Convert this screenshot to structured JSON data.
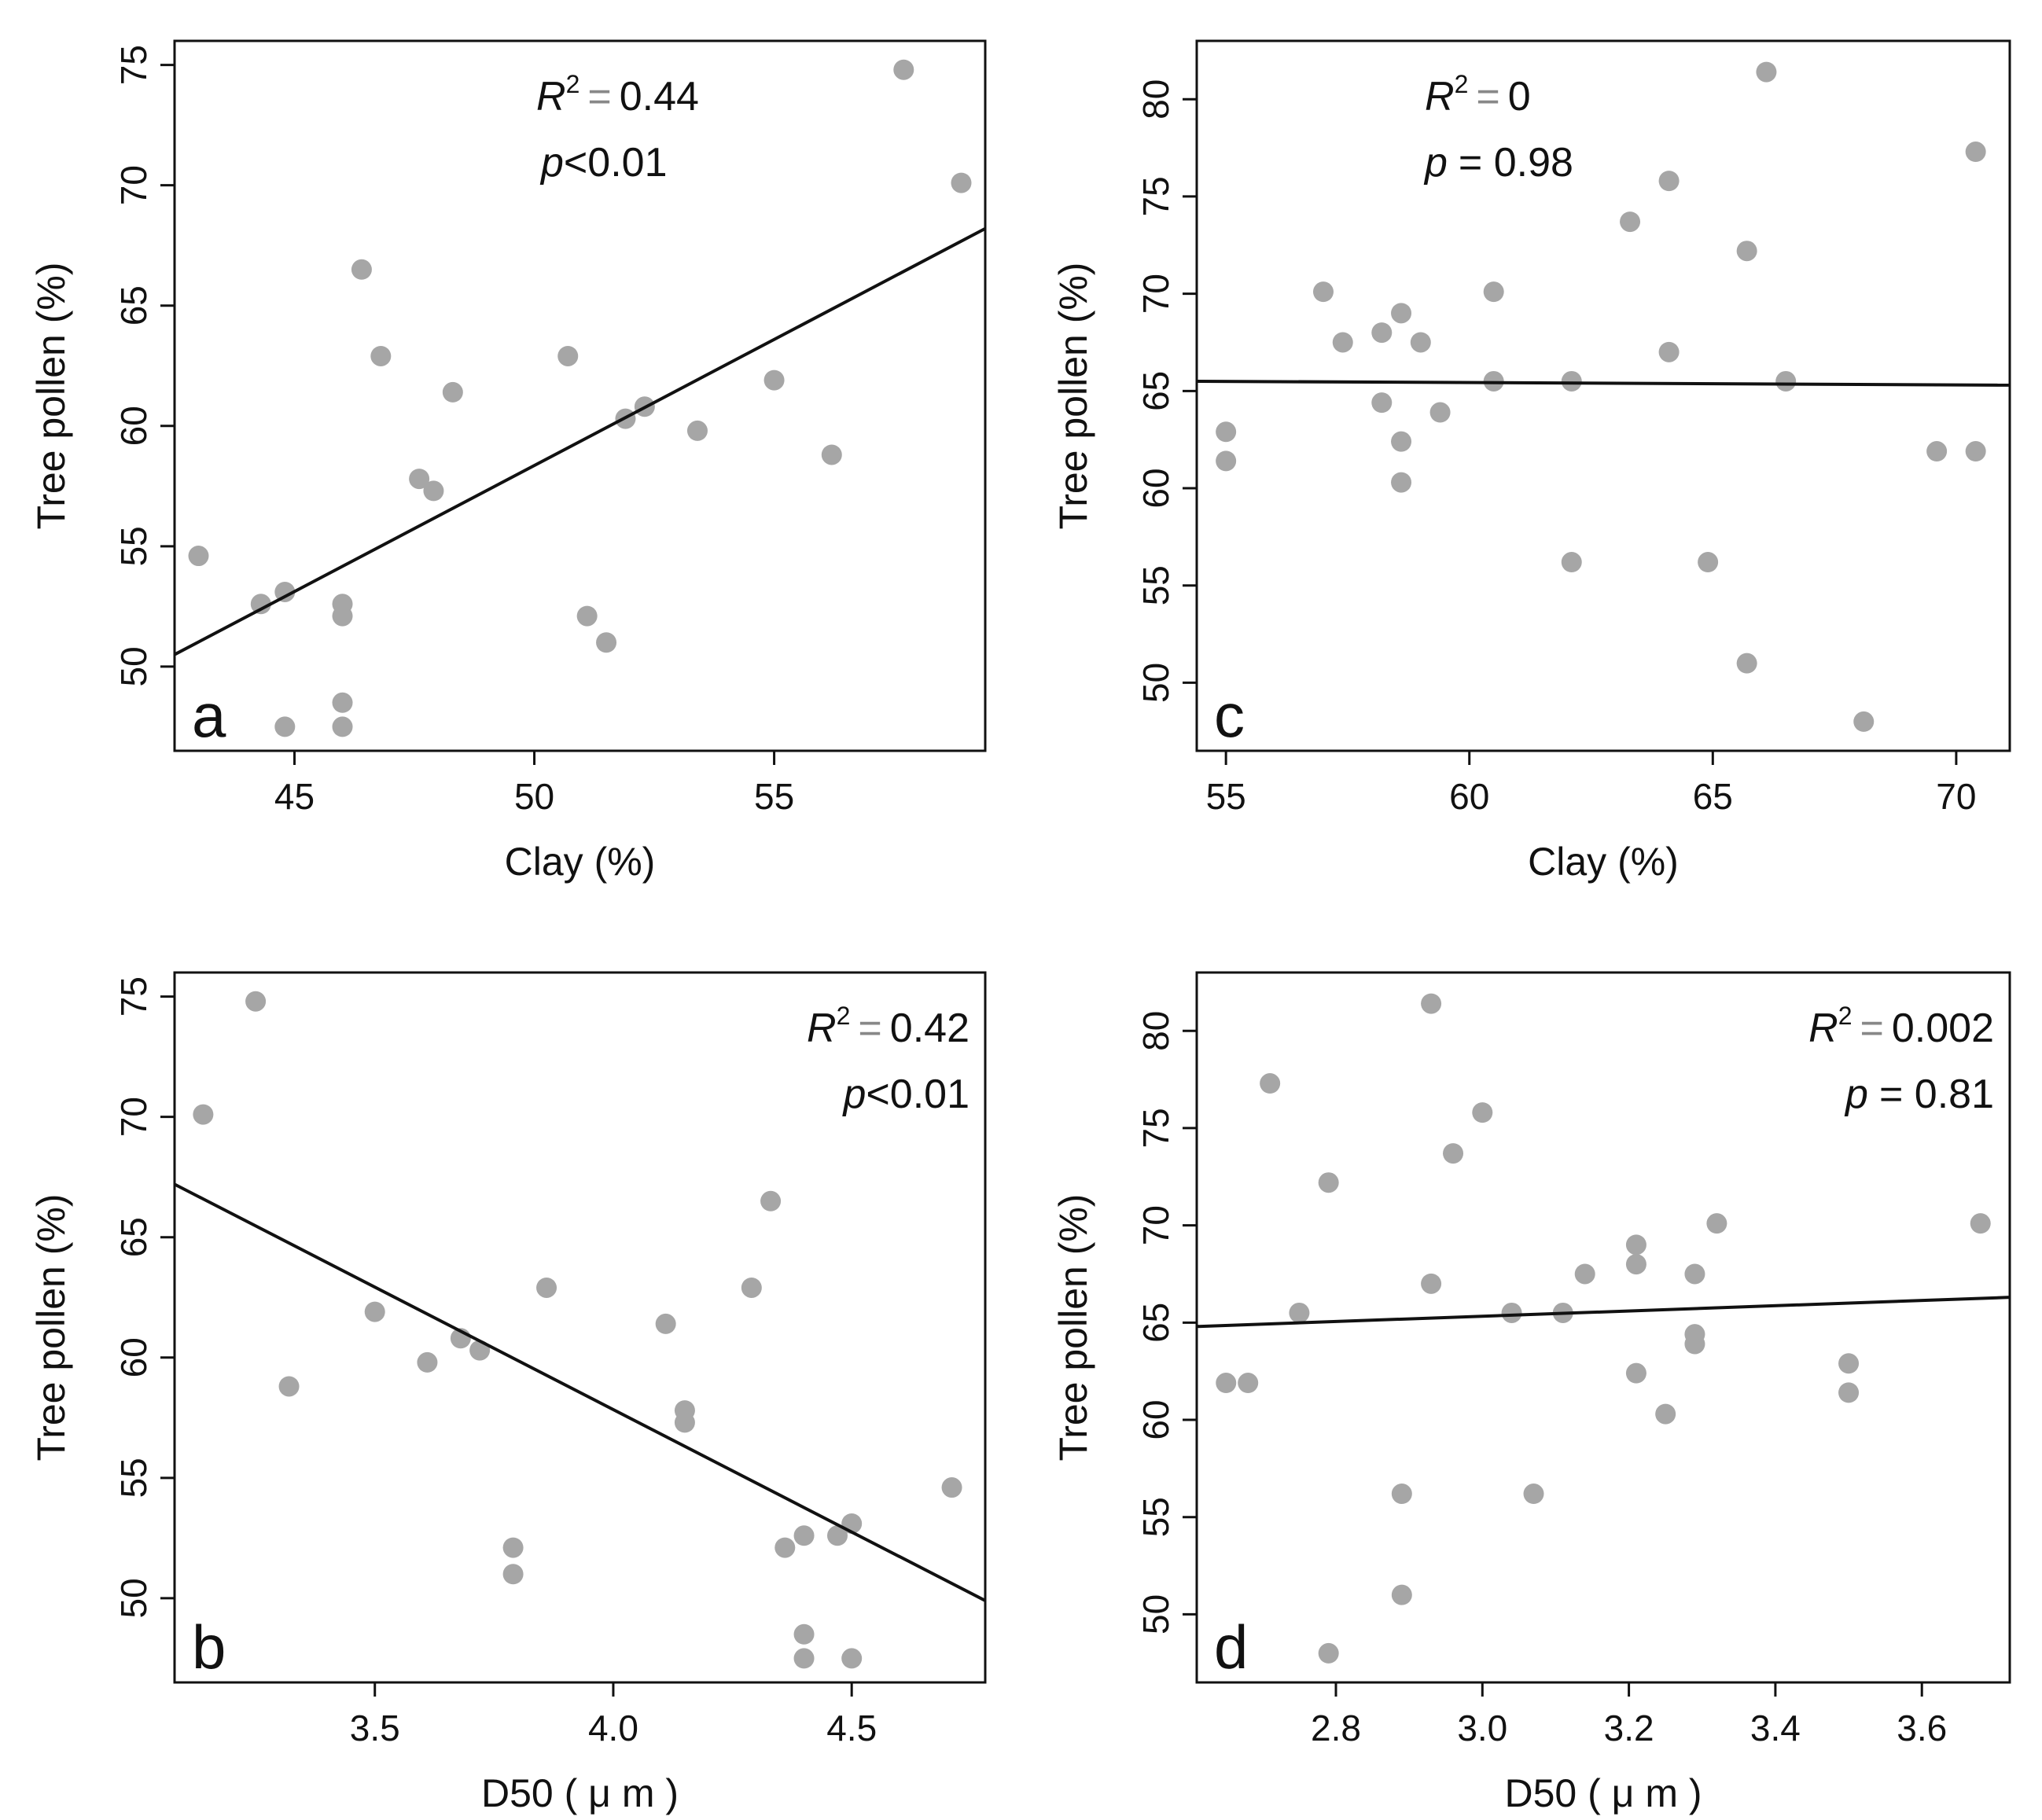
{
  "colors": {
    "point": "#a6a6a6",
    "line": "#111111",
    "axis": "#111111",
    "background": "#ffffff"
  },
  "chart_data": [
    {
      "id": "a",
      "type": "scatter",
      "panel_label": "a",
      "xlabel": "Clay (%)",
      "ylabel": "Tree pollen (%)",
      "xlim": [
        42.5,
        59.4
      ],
      "ylim": [
        46.5,
        76.0
      ],
      "xticks": [
        45,
        50,
        55
      ],
      "yticks": [
        50,
        55,
        60,
        65,
        70,
        75
      ],
      "stats": {
        "r2_label": "R",
        "r2_sup": "2",
        "eq": "=",
        "r2_value": "0.44",
        "p_label": "p",
        "p_text": "<0.01"
      },
      "stats_position": "top-center",
      "fit_line": {
        "x": [
          42.5,
          59.4
        ],
        "y": [
          50.5,
          68.2
        ]
      },
      "x": [
        43.0,
        44.3,
        44.8,
        44.8,
        46.0,
        46.0,
        46.0,
        46.0,
        46.4,
        46.8,
        47.6,
        47.9,
        48.3,
        50.7,
        51.1,
        51.5,
        51.9,
        52.3,
        53.4,
        55.0,
        56.2,
        57.7,
        58.9
      ],
      "y": [
        54.6,
        52.6,
        53.1,
        47.5,
        52.6,
        52.1,
        48.5,
        47.5,
        66.5,
        62.9,
        57.8,
        57.3,
        61.4,
        62.9,
        52.1,
        51.0,
        60.3,
        60.8,
        59.8,
        61.9,
        58.8,
        74.8,
        70.1
      ]
    },
    {
      "id": "b",
      "type": "scatter",
      "panel_label": "b",
      "xlabel": "D50 ( μ m )",
      "ylabel": "Tree pollen (%)",
      "xlim": [
        3.08,
        4.78
      ],
      "ylim": [
        46.5,
        76.0
      ],
      "xticks": [
        3.5,
        4.0,
        4.5
      ],
      "yticks": [
        50,
        55,
        60,
        65,
        70,
        75
      ],
      "stats": {
        "r2_label": "R",
        "r2_sup": "2",
        "eq": "=",
        "r2_value": "0.42",
        "p_label": "p",
        "p_text": "<0.01"
      },
      "stats_position": "top-right",
      "fit_line": {
        "x": [
          3.08,
          4.78
        ],
        "y": [
          67.2,
          49.9
        ]
      },
      "x": [
        3.14,
        3.25,
        3.32,
        3.5,
        3.61,
        3.68,
        3.72,
        3.79,
        3.79,
        3.86,
        4.11,
        4.15,
        4.15,
        4.29,
        4.33,
        4.36,
        4.4,
        4.4,
        4.4,
        4.47,
        4.5,
        4.5,
        4.71
      ],
      "y": [
        70.1,
        74.8,
        58.8,
        61.9,
        59.8,
        60.8,
        60.3,
        52.1,
        51.0,
        62.9,
        61.4,
        57.8,
        57.3,
        62.9,
        66.5,
        52.1,
        52.6,
        48.5,
        47.5,
        52.6,
        53.1,
        47.5,
        54.6
      ]
    },
    {
      "id": "c",
      "type": "scatter",
      "panel_label": "c",
      "xlabel": "Clay (%)",
      "ylabel": "Tree pollen (%)",
      "xlim": [
        54.4,
        71.1
      ],
      "ylim": [
        46.5,
        83.0
      ],
      "xticks": [
        55,
        60,
        65,
        70
      ],
      "yticks": [
        50,
        55,
        60,
        65,
        70,
        75,
        80
      ],
      "stats": {
        "r2_label": "R",
        "r2_sup": "2",
        "eq": "=",
        "r2_value": "0",
        "p_label": "p",
        "p_text": "= 0.98"
      },
      "stats_position": "top-left",
      "fit_line": {
        "x": [
          54.4,
          71.1
        ],
        "y": [
          65.5,
          65.3
        ]
      },
      "x": [
        55.0,
        55.0,
        57.0,
        57.4,
        58.2,
        58.2,
        58.6,
        58.6,
        58.6,
        59.0,
        59.4,
        60.5,
        60.5,
        62.1,
        62.1,
        63.3,
        64.1,
        64.1,
        64.9,
        65.7,
        65.7,
        66.1,
        66.5,
        68.1,
        69.6,
        70.4,
        70.4
      ],
      "y": [
        62.9,
        61.4,
        70.1,
        67.5,
        68.0,
        64.4,
        69.0,
        62.4,
        60.3,
        67.5,
        63.9,
        70.1,
        65.5,
        65.5,
        56.2,
        73.7,
        75.8,
        67.0,
        56.2,
        72.2,
        51.0,
        81.4,
        65.5,
        48.0,
        61.9,
        77.3,
        61.9
      ]
    },
    {
      "id": "d",
      "type": "scatter",
      "panel_label": "d",
      "xlabel": "D50 ( μ m )",
      "ylabel": "Tree pollen (%)",
      "xlim": [
        2.61,
        3.72
      ],
      "ylim": [
        46.5,
        83.0
      ],
      "xticks": [
        2.8,
        3.0,
        3.2,
        3.4,
        3.6
      ],
      "yticks": [
        50,
        55,
        60,
        65,
        70,
        75,
        80
      ],
      "stats": {
        "r2_label": "R",
        "r2_sup": "2",
        "eq": "=",
        "r2_value": "0.002",
        "p_label": "p",
        "p_text": "= 0.81"
      },
      "stats_position": "top-right",
      "fit_line": {
        "x": [
          2.61,
          3.72
        ],
        "y": [
          64.8,
          66.3
        ]
      },
      "x": [
        2.65,
        2.68,
        2.71,
        2.75,
        2.79,
        2.79,
        2.89,
        2.89,
        2.93,
        2.93,
        2.96,
        3.0,
        3.04,
        3.07,
        3.11,
        3.14,
        3.21,
        3.21,
        3.21,
        3.25,
        3.29,
        3.29,
        3.29,
        3.32,
        3.5,
        3.5,
        3.68
      ],
      "y": [
        61.9,
        61.9,
        77.3,
        65.5,
        72.2,
        48.0,
        56.2,
        51.0,
        81.4,
        67.0,
        73.7,
        75.8,
        65.5,
        56.2,
        65.5,
        67.5,
        69.0,
        68.0,
        62.4,
        60.3,
        67.5,
        64.4,
        63.9,
        70.1,
        62.9,
        61.4,
        70.1
      ]
    }
  ]
}
